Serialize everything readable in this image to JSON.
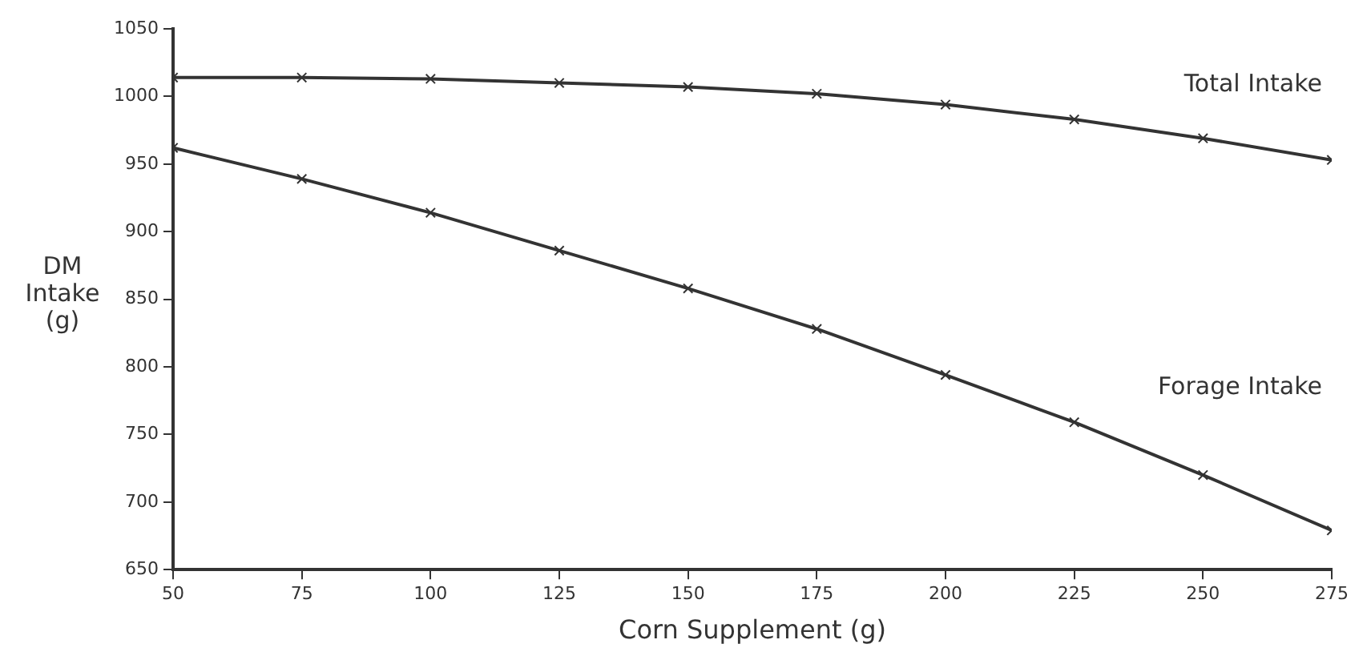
{
  "chart_data": {
    "type": "line",
    "xlabel": "Corn Supplement (g)",
    "ylabel": "DM\nIntake\n(g)",
    "x": [
      50,
      75,
      100,
      125,
      150,
      175,
      200,
      225,
      250,
      275
    ],
    "series": [
      {
        "name": "Total Intake",
        "color": "#333333",
        "values": [
          1014,
          1014,
          1013,
          1010,
          1007,
          1002,
          994,
          983,
          969,
          953
        ]
      },
      {
        "name": "Forage Intake",
        "color": "#333333",
        "values": [
          962,
          939,
          914,
          886,
          858,
          828,
          794,
          759,
          720,
          679
        ]
      }
    ],
    "xlim": [
      50,
      275
    ],
    "xticks": [
      50,
      75,
      100,
      125,
      150,
      175,
      200,
      225,
      250,
      275
    ],
    "ylim": [
      650,
      1050
    ],
    "yticks": [
      650,
      700,
      750,
      800,
      850,
      900,
      950,
      1000,
      1050
    ],
    "grid": false,
    "legend": false,
    "marker": "cross",
    "line_style": "solid"
  }
}
